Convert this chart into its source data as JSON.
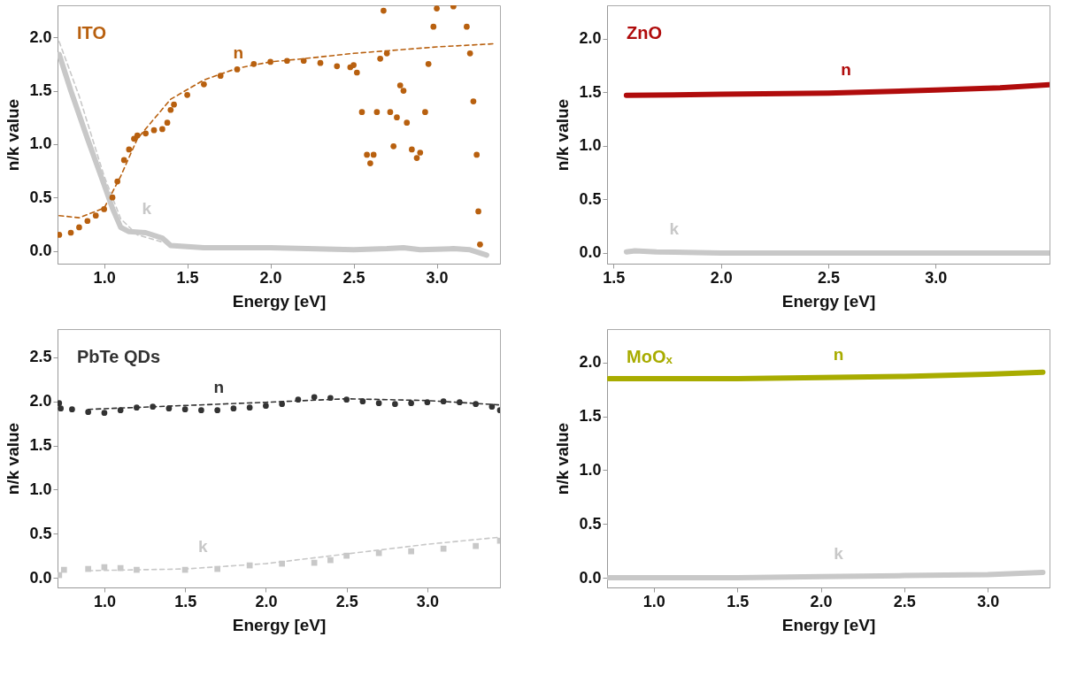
{
  "chart_data": [
    {
      "type": "line",
      "title": "ITO",
      "xlabel": "Energy [eV]",
      "ylabel": "n/k value",
      "xlim": [
        0.72,
        3.38
      ],
      "ylim": [
        -0.12,
        2.3
      ],
      "xticks": [
        {
          "value": 1,
          "label": "1.0"
        },
        {
          "value": 1.5,
          "label": "1.5"
        },
        {
          "value": 2,
          "label": "2.0"
        },
        {
          "value": 2.5,
          "label": "2.5"
        },
        {
          "value": 3,
          "label": "3.0"
        }
      ],
      "yticks": [
        {
          "value": 0,
          "label": "0.0"
        },
        {
          "value": 0.5,
          "label": "0.5"
        },
        {
          "value": 1,
          "label": "1.0"
        },
        {
          "value": 1.5,
          "label": "1.5"
        },
        {
          "value": 2,
          "label": "2.0"
        }
      ],
      "grid": false,
      "series": [
        {
          "color": "#b8600f",
          "line_style": "dashed",
          "x": [
            0.73,
            0.85,
            1.0,
            1.1,
            1.2,
            1.4,
            1.6,
            1.8,
            2.0,
            2.2,
            2.5,
            3.0,
            3.35
          ],
          "values": [
            0.33,
            0.31,
            0.4,
            0.7,
            1.05,
            1.42,
            1.6,
            1.71,
            1.77,
            1.8,
            1.85,
            1.91,
            1.94
          ]
        },
        {
          "color": "#c8c8c8",
          "line_style": "dashed",
          "x": [
            0.73,
            0.85,
            1.0,
            1.1,
            1.2,
            1.4,
            1.5
          ],
          "values": [
            1.96,
            1.45,
            0.7,
            0.3,
            0.15,
            0.06,
            0.04
          ]
        },
        {
          "name": "k",
          "color": "#c8c8c8",
          "line_style": "solid",
          "x": [
            0.73,
            0.8,
            0.9,
            1.0,
            1.05,
            1.1,
            1.15,
            1.25,
            1.35,
            1.4,
            1.6,
            2.0,
            2.5,
            2.7,
            2.8,
            2.9,
            3.1,
            3.2,
            3.3
          ],
          "values": [
            1.84,
            1.5,
            1.05,
            0.62,
            0.4,
            0.22,
            0.18,
            0.17,
            0.12,
            0.05,
            0.03,
            0.03,
            0.01,
            0.02,
            0.03,
            0.01,
            0.02,
            0.01,
            -0.04
          ]
        },
        {
          "name": "n",
          "type": "scatter",
          "marker": "circle",
          "color": "#b8600f",
          "x": [
            0.73,
            0.8,
            0.85,
            0.9,
            0.95,
            1.0,
            1.05,
            1.08,
            1.12,
            1.15,
            1.18,
            1.2,
            1.25,
            1.3,
            1.35,
            1.38,
            1.4,
            1.42,
            1.5,
            1.6,
            1.7,
            1.8,
            1.9,
            2.0,
            2.1,
            2.2,
            2.3,
            2.4,
            2.48,
            2.5,
            2.52,
            2.55,
            2.58,
            2.6,
            2.62,
            2.64,
            2.66,
            2.68,
            2.7,
            2.72,
            2.74,
            2.76,
            2.78,
            2.8,
            2.82,
            2.85,
            2.88,
            2.9,
            2.93,
            2.95,
            2.98,
            3.0,
            3.05,
            3.1,
            3.15,
            3.18,
            3.2,
            3.22,
            3.24,
            3.25,
            3.26
          ],
          "values": [
            0.15,
            0.17,
            0.22,
            0.28,
            0.33,
            0.39,
            0.5,
            0.65,
            0.85,
            0.95,
            1.05,
            1.08,
            1.1,
            1.13,
            1.14,
            1.2,
            1.32,
            1.37,
            1.46,
            1.56,
            1.64,
            1.7,
            1.75,
            1.77,
            1.78,
            1.78,
            1.76,
            1.73,
            1.72,
            1.74,
            1.67,
            1.3,
            0.9,
            0.82,
            0.9,
            1.3,
            1.8,
            2.25,
            1.85,
            1.3,
            0.98,
            1.25,
            1.55,
            1.5,
            1.2,
            0.95,
            0.87,
            0.92,
            1.3,
            1.75,
            2.1,
            2.27,
            null,
            2.29,
            null,
            2.1,
            1.85,
            1.4,
            0.9,
            0.37,
            0.06
          ]
        }
      ]
    },
    {
      "type": "line",
      "title": "ZnO",
      "xlabel": "Energy [eV]",
      "ylabel": "n/k value",
      "xlim": [
        1.47,
        3.53
      ],
      "ylim": [
        -0.1,
        2.31
      ],
      "xticks": [
        {
          "value": 1.5,
          "label": "1.5"
        },
        {
          "value": 2,
          "label": "2.0"
        },
        {
          "value": 2.5,
          "label": "2.5"
        },
        {
          "value": 3,
          "label": "3.0"
        }
      ],
      "yticks": [
        {
          "value": 0,
          "label": "0.0"
        },
        {
          "value": 0.5,
          "label": "0.5"
        },
        {
          "value": 1,
          "label": "1.0"
        },
        {
          "value": 1.5,
          "label": "1.5"
        },
        {
          "value": 2,
          "label": "2.0"
        }
      ],
      "grid": false,
      "series": [
        {
          "name": "n",
          "color": "#b00c0c",
          "line_style": "solid",
          "x": [
            1.56,
            2.0,
            2.5,
            3.0,
            3.3,
            3.53
          ],
          "values": [
            1.47,
            1.48,
            1.49,
            1.52,
            1.54,
            1.57
          ]
        },
        {
          "name": "k",
          "color": "#c8c8c8",
          "line_style": "solid",
          "x": [
            1.56,
            1.6,
            1.7,
            2.0,
            2.5,
            3.0,
            3.53
          ],
          "values": [
            0.01,
            0.02,
            0.01,
            0.0,
            0.0,
            0.0,
            0.0
          ]
        }
      ]
    },
    {
      "type": "line",
      "title": "PbTe QDs",
      "xlabel": "Energy [eV]",
      "ylabel": "n/k value",
      "xlim": [
        0.71,
        3.45
      ],
      "ylim": [
        -0.11,
        2.82
      ],
      "xticks": [
        {
          "value": 1,
          "label": "1.0"
        },
        {
          "value": 1.5,
          "label": "1.5"
        },
        {
          "value": 2,
          "label": "2.0"
        },
        {
          "value": 2.5,
          "label": "2.5"
        },
        {
          "value": 3,
          "label": "3.0"
        }
      ],
      "yticks": [
        {
          "value": 0,
          "label": "0.0"
        },
        {
          "value": 0.5,
          "label": "0.5"
        },
        {
          "value": 1,
          "label": "1.0"
        },
        {
          "value": 1.5,
          "label": "1.5"
        },
        {
          "value": 2,
          "label": "2.0"
        },
        {
          "value": 2.5,
          "label": "2.5"
        }
      ],
      "grid": false,
      "series": [
        {
          "color": "#333333",
          "line_style": "dashed",
          "x": [
            0.9,
            2.0,
            2.5,
            3.0,
            3.45
          ],
          "values": [
            1.91,
            1.99,
            2.03,
            2.01,
            1.96
          ]
        },
        {
          "color": "#c8c8c8",
          "line_style": "dashed",
          "x": [
            0.9,
            1.5,
            2.0,
            2.5,
            3.0,
            3.45
          ],
          "values": [
            0.08,
            0.1,
            0.16,
            0.27,
            0.38,
            0.46
          ]
        },
        {
          "name": "n",
          "type": "scatter",
          "marker": "circle",
          "color": "#333333",
          "x": [
            0.72,
            0.73,
            0.8,
            0.9,
            1.0,
            1.1,
            1.2,
            1.3,
            1.4,
            1.5,
            1.6,
            1.7,
            1.8,
            1.9,
            2.0,
            2.1,
            2.2,
            2.3,
            2.4,
            2.5,
            2.6,
            2.7,
            2.8,
            2.9,
            3.0,
            3.1,
            3.2,
            3.3,
            3.4,
            3.45
          ],
          "values": [
            1.98,
            1.92,
            1.91,
            1.88,
            1.87,
            1.9,
            1.93,
            1.94,
            1.92,
            1.91,
            1.9,
            1.9,
            1.92,
            1.93,
            1.95,
            1.97,
            2.02,
            2.05,
            2.04,
            2.02,
            2.0,
            1.98,
            1.97,
            1.98,
            1.99,
            2.0,
            1.99,
            1.97,
            1.94,
            1.9
          ]
        },
        {
          "name": "k",
          "type": "scatter",
          "marker": "square",
          "color": "#c8c8c8",
          "x": [
            0.72,
            0.75,
            0.9,
            1.0,
            1.1,
            1.2,
            1.5,
            1.7,
            1.9,
            2.1,
            2.3,
            2.4,
            2.5,
            2.7,
            2.9,
            3.1,
            3.3,
            3.45
          ],
          "values": [
            0.03,
            0.09,
            0.1,
            0.12,
            0.11,
            0.09,
            0.09,
            0.1,
            0.14,
            0.16,
            0.17,
            0.2,
            0.25,
            0.28,
            0.3,
            0.33,
            0.36,
            0.42
          ]
        }
      ]
    },
    {
      "type": "line",
      "title": "MoOₓ",
      "xlabel": "Energy [eV]",
      "ylabel": "n/k value",
      "xlim": [
        0.72,
        3.37
      ],
      "ylim": [
        -0.09,
        2.31
      ],
      "xticks": [
        {
          "value": 1,
          "label": "1.0"
        },
        {
          "value": 1.5,
          "label": "1.5"
        },
        {
          "value": 2,
          "label": "2.0"
        },
        {
          "value": 2.5,
          "label": "2.5"
        },
        {
          "value": 3,
          "label": "3.0"
        }
      ],
      "yticks": [
        {
          "value": 0,
          "label": "0.0"
        },
        {
          "value": 0.5,
          "label": "0.5"
        },
        {
          "value": 1,
          "label": "1.0"
        },
        {
          "value": 1.5,
          "label": "1.5"
        },
        {
          "value": 2,
          "label": "2.0"
        }
      ],
      "grid": false,
      "series": [
        {
          "name": "n",
          "color": "#a8ac00",
          "line_style": "solid",
          "x": [
            0.73,
            1.5,
            2.0,
            2.5,
            3.0,
            3.33
          ],
          "values": [
            1.85,
            1.85,
            1.86,
            1.87,
            1.89,
            1.91
          ]
        },
        {
          "name": "k",
          "color": "#c8c8c8",
          "line_style": "solid",
          "x": [
            0.73,
            1.5,
            2.0,
            2.5,
            3.0,
            3.33
          ],
          "values": [
            0.0,
            0.0,
            0.01,
            0.02,
            0.03,
            0.05
          ]
        }
      ]
    }
  ]
}
